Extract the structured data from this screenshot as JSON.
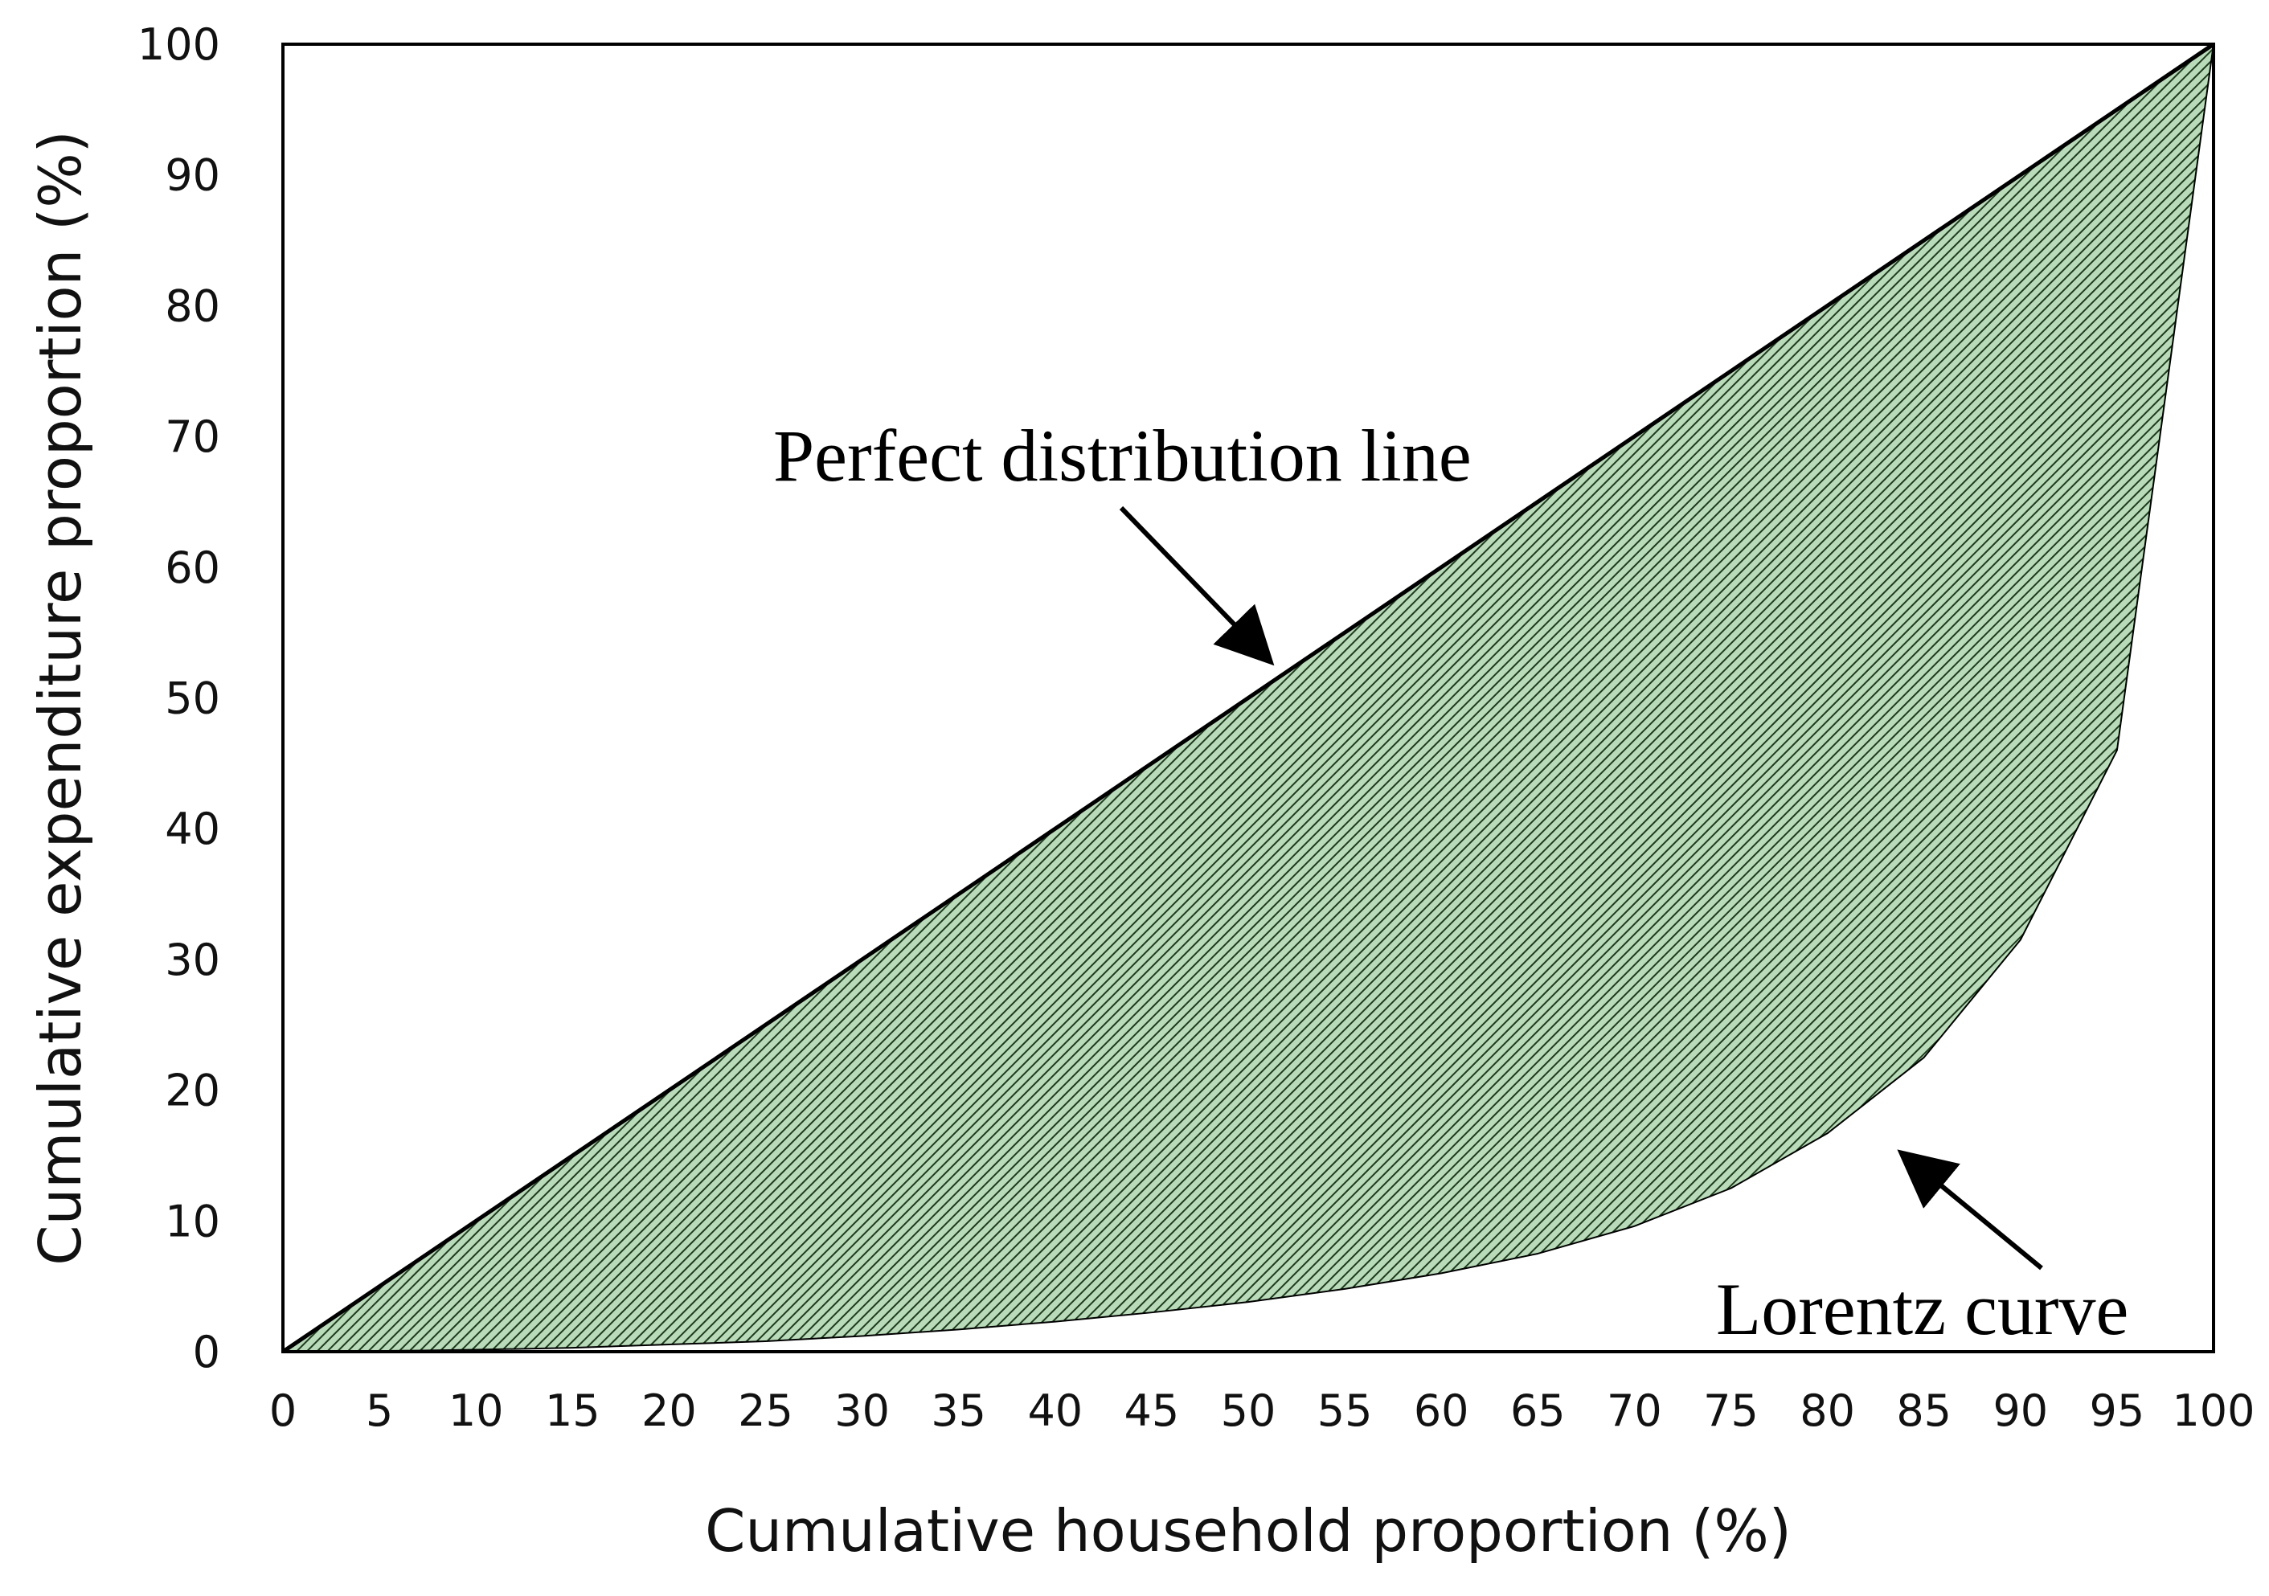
{
  "chart_data": {
    "type": "area",
    "title": "",
    "xlabel": "Cumulative household proportion (%)",
    "ylabel": "Cumulative expenditure proportion (%)",
    "xlim": [
      0,
      100
    ],
    "ylim": [
      0,
      100
    ],
    "xticks": [
      0,
      5,
      10,
      15,
      20,
      25,
      30,
      35,
      40,
      45,
      50,
      55,
      60,
      65,
      70,
      75,
      80,
      85,
      90,
      95,
      100
    ],
    "yticks": [
      0,
      10,
      20,
      30,
      40,
      50,
      60,
      70,
      80,
      90,
      100
    ],
    "grid": false,
    "series": [
      {
        "x": [
          0,
          100
        ],
        "y": [
          0,
          100
        ]
      },
      {
        "x": [
          0,
          5,
          10,
          15,
          20,
          25,
          30,
          35,
          40,
          45,
          50,
          55,
          60,
          65,
          70,
          75,
          80,
          85,
          90,
          95,
          100
        ],
        "y": [
          0,
          0.05,
          0.15,
          0.3,
          0.55,
          0.8,
          1.2,
          1.7,
          2.3,
          3.0,
          3.8,
          4.8,
          6.0,
          7.5,
          9.6,
          12.5,
          16.7,
          22.5,
          31.5,
          46.0,
          100
        ]
      }
    ],
    "shaded_region": {
      "between": [
        "line",
        "curve"
      ],
      "fill_color": "#b9dbb9",
      "hatch_color": "#1f3a1f"
    },
    "annotations": [
      {
        "text": "Perfect distribution line",
        "arrow_to": {
          "x": 51,
          "y": 53
        }
      },
      {
        "text": "Lorentz curve",
        "arrow_to": {
          "x": 84,
          "y": 15
        }
      }
    ],
    "colors": {
      "line": "#000000",
      "frame": "#000000"
    }
  }
}
